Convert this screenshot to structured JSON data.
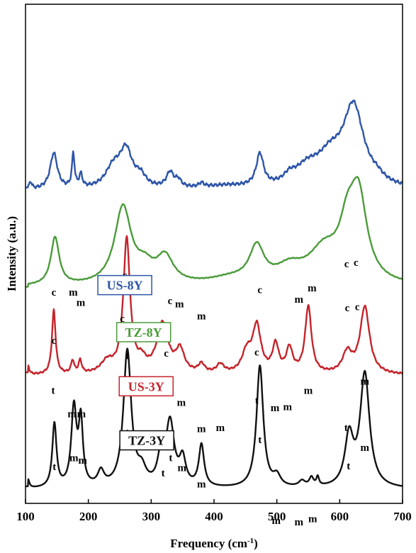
{
  "chart_data": {
    "type": "line",
    "title": "",
    "xlabel": "Frequency (cm",
    "xlabel_sup": "-1",
    "xlabel_close": ")",
    "ylabel": "Intensity (a.u.)",
    "xlim": [
      100,
      700
    ],
    "xticks": [
      100,
      200,
      300,
      400,
      500,
      600,
      700
    ],
    "yscale": "arbitrary (stacked spectra)",
    "grid": false,
    "series": [
      {
        "name": "US-8Y",
        "color": "#2e55a8",
        "baseline": 0.8,
        "noise": 0.018,
        "peaks": [
          [
            108,
            0.12,
            2.5
          ],
          [
            145,
            0.62,
            7
          ],
          [
            176,
            0.58,
            2.5
          ],
          [
            188,
            0.22,
            3
          ],
          [
            240,
            0.35,
            15
          ],
          [
            260,
            0.62,
            12
          ],
          [
            283,
            0.18,
            10
          ],
          [
            330,
            0.26,
            7
          ],
          [
            343,
            0.12,
            6
          ],
          [
            380,
            0.07,
            5
          ],
          [
            418,
            0.05,
            40
          ],
          [
            473,
            0.55,
            7
          ],
          [
            520,
            0.12,
            10
          ],
          [
            548,
            0.3,
            25
          ],
          [
            585,
            0.45,
            25
          ],
          [
            622,
            1.35,
            20
          ],
          [
            660,
            0.08,
            12
          ]
        ]
      },
      {
        "name": "TZ-8Y",
        "color": "#4a9b3a",
        "baseline": 0.0,
        "noise": 0.004,
        "peaks": [
          [
            147,
            0.82,
            8
          ],
          [
            255,
            1.33,
            16
          ],
          [
            290,
            0.25,
            16
          ],
          [
            322,
            0.45,
            16
          ],
          [
            425,
            0.1,
            40
          ],
          [
            468,
            0.6,
            14
          ],
          [
            520,
            0.25,
            26
          ],
          [
            575,
            0.55,
            30
          ],
          [
            612,
            0.75,
            15
          ],
          [
            630,
            1.4,
            16
          ]
        ]
      },
      {
        "name": "US-3Y",
        "color": "#c4242c",
        "baseline": 0.0,
        "noise": 0.01,
        "peaks": [
          [
            104,
            0.15,
            2.5
          ],
          [
            145,
            1.1,
            3.5
          ],
          [
            175,
            0.22,
            3
          ],
          [
            187,
            0.22,
            3
          ],
          [
            230,
            0.2,
            12
          ],
          [
            261,
            2.3,
            6.5
          ],
          [
            285,
            0.18,
            8
          ],
          [
            318,
            0.85,
            11
          ],
          [
            346,
            0.38,
            8
          ],
          [
            380,
            0.15,
            6
          ],
          [
            410,
            0.15,
            7
          ],
          [
            452,
            0.35,
            9
          ],
          [
            468,
            0.8,
            8
          ],
          [
            498,
            0.48,
            6
          ],
          [
            520,
            0.42,
            6
          ],
          [
            550,
            1.15,
            6
          ],
          [
            612,
            0.35,
            9
          ],
          [
            640,
            1.15,
            9
          ]
        ]
      },
      {
        "name": "TZ-3Y",
        "color": "#111111",
        "baseline": 0.0,
        "noise": 0.0,
        "peaks": [
          [
            104,
            0.15,
            2.5
          ],
          [
            146,
            1.1,
            4
          ],
          [
            177,
            1.35,
            5
          ],
          [
            188,
            1.1,
            4
          ],
          [
            220,
            0.25,
            6
          ],
          [
            262,
            2.35,
            7.5
          ],
          [
            285,
            0.25,
            8
          ],
          [
            315,
            0.45,
            6
          ],
          [
            330,
            1.1,
            8
          ],
          [
            350,
            0.45,
            6
          ],
          [
            380,
            0.72,
            5
          ],
          [
            473,
            2.1,
            6.5
          ],
          [
            500,
            0.18,
            7
          ],
          [
            540,
            0.1,
            6
          ],
          [
            555,
            0.15,
            4
          ],
          [
            565,
            0.15,
            2.5
          ],
          [
            615,
            0.85,
            8
          ],
          [
            640,
            1.95,
            9
          ]
        ]
      }
    ],
    "annotations": [
      {
        "text": "c",
        "x": 145,
        "y": 3.33
      },
      {
        "text": "m",
        "x": 176,
        "y": 3.33
      },
      {
        "text": "m",
        "x": 188,
        "y": 3.15
      },
      {
        "text": "c",
        "x": 258,
        "y": 3.62
      },
      {
        "text": "c",
        "x": 330,
        "y": 3.18
      },
      {
        "text": "m",
        "x": 345,
        "y": 3.13
      },
      {
        "text": "m",
        "x": 380,
        "y": 2.92
      },
      {
        "text": "c",
        "x": 473,
        "y": 3.37
      },
      {
        "text": "m",
        "x": 535,
        "y": 3.21
      },
      {
        "text": "m",
        "x": 556,
        "y": 3.4
      },
      {
        "text": "c",
        "x": 611,
        "y": 3.82
      },
      {
        "text": "c",
        "x": 626,
        "y": 3.84
      },
      {
        "text": "c",
        "x": 145,
        "y": 2.5
      },
      {
        "text": "c",
        "x": 254,
        "y": 2.88
      },
      {
        "text": "c",
        "x": 324,
        "y": 2.28
      },
      {
        "text": "c",
        "x": 468,
        "y": 2.3
      },
      {
        "text": "c",
        "x": 612,
        "y": 3.06
      },
      {
        "text": "c",
        "x": 628,
        "y": 3.08
      },
      {
        "text": "t",
        "x": 262,
        "y": 2.24
      },
      {
        "text": "t",
        "x": 144,
        "y": 1.64
      },
      {
        "text": "m",
        "x": 174,
        "y": 1.24
      },
      {
        "text": "m",
        "x": 189,
        "y": 1.24
      },
      {
        "text": "t",
        "x": 318,
        "y": 1.7
      },
      {
        "text": "m",
        "x": 348,
        "y": 1.43
      },
      {
        "text": "m",
        "x": 380,
        "y": 0.98
      },
      {
        "text": "m",
        "x": 410,
        "y": 1.0
      },
      {
        "text": "t",
        "x": 468,
        "y": 1.47
      },
      {
        "text": "m",
        "x": 497,
        "y": 1.34
      },
      {
        "text": "m",
        "x": 517,
        "y": 1.36
      },
      {
        "text": "m",
        "x": 550,
        "y": 1.64
      },
      {
        "text": "t",
        "x": 610,
        "y": 1.0
      },
      {
        "text": "m",
        "x": 640,
        "y": 1.8
      },
      {
        "text": "t",
        "x": 262,
        "y": 0.92
      },
      {
        "text": "t",
        "x": 146,
        "y": 0.33
      },
      {
        "text": "m",
        "x": 177,
        "y": 0.48
      },
      {
        "text": "m",
        "x": 191,
        "y": 0.44
      },
      {
        "text": "t",
        "x": 319,
        "y": 0.22
      },
      {
        "text": "t",
        "x": 331,
        "y": 0.48
      },
      {
        "text": "m",
        "x": 349,
        "y": 0.31
      },
      {
        "text": "m",
        "x": 380,
        "y": 0.03
      },
      {
        "text": "t",
        "x": 473,
        "y": 0.79
      },
      {
        "text": "m",
        "x": 499,
        "y": -0.6
      },
      {
        "text": "m",
        "x": 535,
        "y": -0.62
      },
      {
        "text": "m",
        "x": 557,
        "y": -0.57
      },
      {
        "text": "t",
        "x": 614,
        "y": 0.34
      },
      {
        "text": "m",
        "x": 640,
        "y": 0.66
      }
    ],
    "legend_boxes": [
      {
        "text": "US-8Y",
        "color": "#2e55a8",
        "x": 258,
        "y": 3.48
      },
      {
        "text": "TZ-8Y",
        "color": "#4a9b3a",
        "x": 288,
        "y": 2.67
      },
      {
        "text": "US-3Y",
        "color": "#c4242c",
        "x": 292,
        "y": 1.74
      },
      {
        "text": "TZ-3Y",
        "color": "#111111",
        "x": 293,
        "y": 0.81
      }
    ]
  }
}
